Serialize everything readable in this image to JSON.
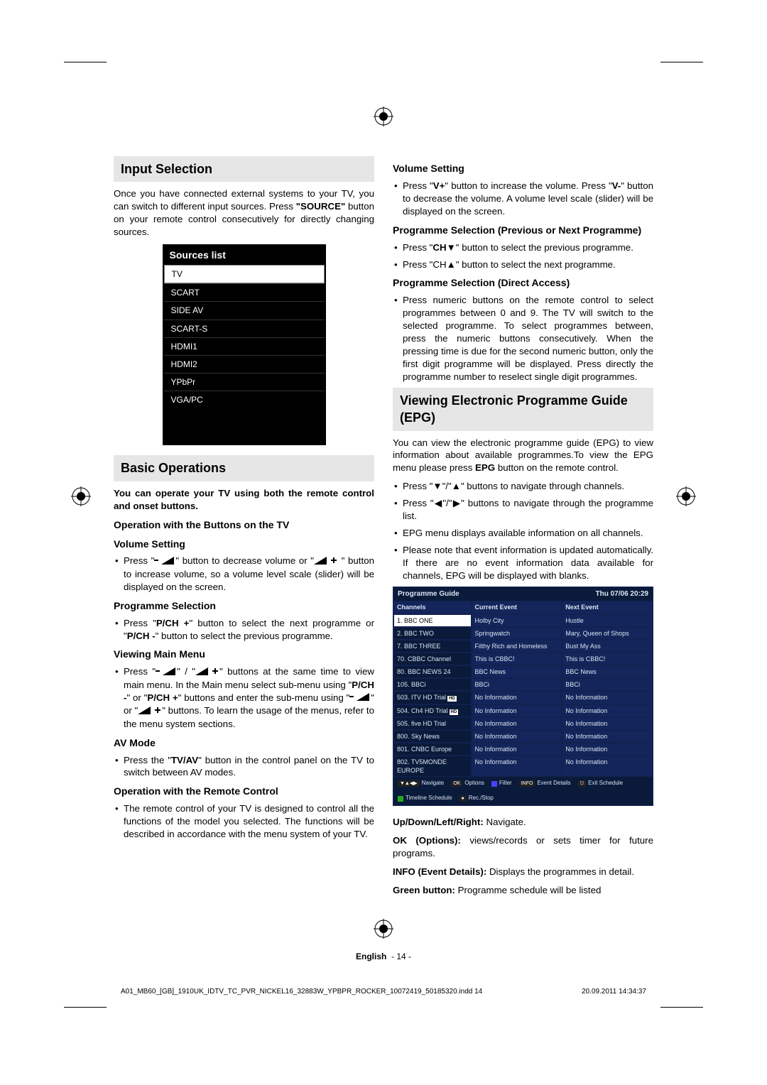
{
  "left": {
    "inputSelection": {
      "title": "Input Selection",
      "intro": "Once you have connected external systems to your TV, you can switch to different input sources. Press \"SOURCE\" button on your remote control consecutively for directly changing sources.",
      "sources": {
        "heading": "Sources list",
        "items": [
          "TV",
          "SCART",
          "SIDE AV",
          "SCART-S",
          "HDMI1",
          "HDMI2",
          "YPbPr",
          "VGA/PC"
        ],
        "selectedIndex": 0
      }
    },
    "basicOps": {
      "title": "Basic Operations",
      "lead": "You can operate your TV using both the remote control and onset buttons.",
      "h1": "Operation with the Buttons on the TV",
      "h2": "Volume Setting",
      "vol": "Press \"− 🔈\" button to decrease volume or \"🔈 +\" button to increase volume, so a volume level scale (slider) will be displayed on the screen.",
      "h3": "Programme Selection",
      "prog": "Press \"P/CH +\" button to select the next programme or \"P/CH -\" button to select the previous programme.",
      "h4": "Viewing Main Menu",
      "menu": "Press \"− 🔈\" / \"🔈 +\" buttons at the same time to view main menu. In the Main menu select sub-menu using \"P/CH -\" or \"P/CH +\" buttons and enter the sub-menu using \"− 🔈\" or \"🔈 +\" buttons. To learn the usage of the menus, refer to the menu system sections.",
      "h5": "AV Mode",
      "av": "Press the \"TV/AV\" button in the control panel on the TV to switch between AV modes.",
      "h6": "Operation with the Remote Control",
      "remote": "The remote control of your TV is designed to control all the functions of the model you selected. The functions will be described in accordance with the menu system of your TV."
    }
  },
  "right": {
    "volSet": {
      "h": "Volume Setting",
      "li": "Press \"V+\" button to increase the volume. Press \"V-\" button to decrease the volume. A volume level scale (slider) will be displayed on the screen."
    },
    "progPrev": {
      "h": "Programme Selection (Previous or Next Programme)",
      "li1": "Press \"CH▼\" button to select the previous programme.",
      "li2": "Press \"CH▲\" button to select the next programme."
    },
    "progDirect": {
      "h": "Programme Selection (Direct Access)",
      "li": "Press numeric buttons on the remote control to select programmes between 0 and 9. The TV will switch to the selected programme. To select programmes between, press the numeric buttons consecutively. When the pressing time is due for the second numeric button, only the first digit programme will be displayed.  Press directly the programme number to reselect single digit programmes."
    },
    "epg": {
      "title": "Viewing Electronic Programme Guide (EPG)",
      "intro": "You can view the electronic programme guide (EPG) to view information about available programmes.To view the EPG menu please press EPG button on the remote control.",
      "li1": "Press \"▼\"/\"▲\" buttons to navigate through channels.",
      "li2": "Press \"◀\"/\"▶\" buttons to navigate through the programme list.",
      "li3": "EPG menu displays available information on all channels.",
      "li4": "Please note that event information is updated automatically. If there are no event information data available for channels, EPG will be displayed with blanks.",
      "table": {
        "title": "Programme Guide",
        "date": "Thu 07/06 20:29",
        "cols": [
          "Channels",
          "Current Event",
          "Next Event"
        ],
        "rows": [
          {
            "ch": "1. BBC ONE",
            "cur": "Holby City",
            "next": "Hustle",
            "sel": true,
            "hd": false
          },
          {
            "ch": "2. BBC TWO",
            "cur": "Springwatch",
            "next": "Mary, Queen of Shops"
          },
          {
            "ch": "7. BBC THREE",
            "cur": "Filthy Rich and Homeless",
            "next": "Bust My Ass"
          },
          {
            "ch": "70. CBBC Channel",
            "cur": "This is CBBC!",
            "next": "This is CBBC!"
          },
          {
            "ch": "80. BBC NEWS 24",
            "cur": "BBC News",
            "next": "BBC News"
          },
          {
            "ch": "105. BBCi",
            "cur": "BBCi",
            "next": "BBCi"
          },
          {
            "ch": "503. ITV HD Trial",
            "cur": "No Information",
            "next": "No Information",
            "hd": true
          },
          {
            "ch": "504. Ch4 HD Trial",
            "cur": "No Information",
            "next": "No Information",
            "hd": true
          },
          {
            "ch": "505. five HD Trial",
            "cur": "No Information",
            "next": "No Information"
          },
          {
            "ch": "800. Sky News",
            "cur": "No Information",
            "next": "No Information"
          },
          {
            "ch": "801. CNBC Europe",
            "cur": "No Information",
            "next": "No Information"
          },
          {
            "ch": "802. TV5MONDE EUROPE",
            "cur": "No Information",
            "next": "No Information"
          }
        ],
        "footer": {
          "nav": "Navigate",
          "opt": "Options",
          "tl": "Timeline Schedule",
          "filter": "Filter",
          "rec": "Rec./Stop",
          "ed": "Event Details",
          "es": "Exit Schedule"
        }
      },
      "legend": {
        "nav": "Up/Down/Left/Right:",
        "navt": " Navigate.",
        "ok": "OK (Options):",
        "okt": " views/records or sets timer for future programs.",
        "info": "INFO (Event Details):",
        "infot": " Displays the programmes in detail.",
        "green": "Green button:",
        "greent": " Programme schedule will be listed"
      }
    }
  },
  "footer": {
    "lang": "English",
    "page": "- 14 -",
    "file": "A01_MB60_[GB]_1910UK_IDTV_TC_PVR_NICKEL16_32883W_YPBPR_ROCKER_10072419_50185320.indd   14",
    "ts": "20.09.2011   14:34:37"
  }
}
